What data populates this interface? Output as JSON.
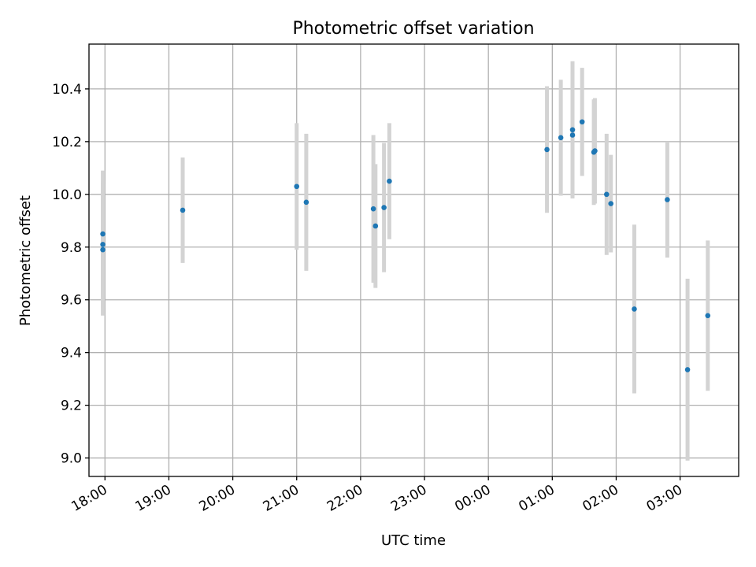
{
  "chart_data": {
    "type": "scatter",
    "title": "Photometric offset variation",
    "xlabel": "UTC time",
    "ylabel": "Photometric offset",
    "x_start": "17:45",
    "x_end": "03:55",
    "xticks": [
      "18:00",
      "19:00",
      "20:00",
      "21:00",
      "22:00",
      "23:00",
      "00:00",
      "01:00",
      "02:00",
      "03:00"
    ],
    "ylim": [
      8.93,
      10.57
    ],
    "yticks": [
      9.0,
      9.2,
      9.4,
      9.6,
      9.8,
      10.0,
      10.2,
      10.4
    ],
    "grid": true,
    "point_color": "#1f77b4",
    "errorbar_color": "#d3d3d3",
    "points": [
      {
        "x": "17:58",
        "y": 9.85,
        "err": 0.24
      },
      {
        "x": "17:58",
        "y": 9.81,
        "err": 0.24
      },
      {
        "x": "17:58",
        "y": 9.79,
        "err": 0.25
      },
      {
        "x": "19:13",
        "y": 9.94,
        "err": 0.2
      },
      {
        "x": "21:00",
        "y": 10.03,
        "err": 0.24
      },
      {
        "x": "21:09",
        "y": 9.97,
        "err": 0.26
      },
      {
        "x": "22:12",
        "y": 9.945,
        "err": 0.28
      },
      {
        "x": "22:14",
        "y": 9.88,
        "err": 0.235
      },
      {
        "x": "22:22",
        "y": 9.95,
        "err": 0.245
      },
      {
        "x": "22:27",
        "y": 10.05,
        "err": 0.22
      },
      {
        "x": "00:55",
        "y": 10.17,
        "err": 0.24
      },
      {
        "x": "01:08",
        "y": 10.215,
        "err": 0.22
      },
      {
        "x": "01:19",
        "y": 10.245,
        "err": 0.26
      },
      {
        "x": "01:19",
        "y": 10.225,
        "err": 0.24
      },
      {
        "x": "01:28",
        "y": 10.275,
        "err": 0.205
      },
      {
        "x": "01:40",
        "y": 10.165,
        "err": 0.2
      },
      {
        "x": "01:39",
        "y": 10.16,
        "err": 0.2
      },
      {
        "x": "01:51",
        "y": 10.0,
        "err": 0.23
      },
      {
        "x": "01:55",
        "y": 9.965,
        "err": 0.185
      },
      {
        "x": "02:17",
        "y": 9.565,
        "err": 0.32
      },
      {
        "x": "02:48",
        "y": 9.98,
        "err": 0.22
      },
      {
        "x": "03:07",
        "y": 9.335,
        "err": 0.345
      },
      {
        "x": "03:26",
        "y": 9.54,
        "err": 0.285
      }
    ]
  }
}
